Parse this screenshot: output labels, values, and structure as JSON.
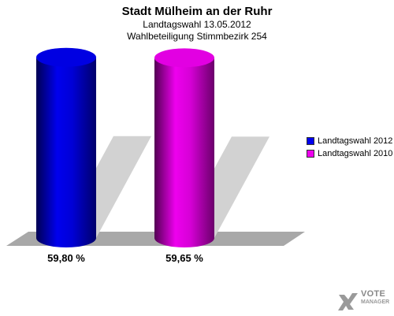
{
  "chart_data": {
    "type": "bar",
    "title": "Stadt Mülheim an der Ruhr",
    "subtitle_1": "Landtagswahl 13.05.2012",
    "subtitle_2": "Wahlbeteiligung Stimmbezirk 254",
    "categories": [
      "Landtagswahl 2012",
      "Landtagswahl 2010"
    ],
    "values": [
      59.8,
      59.65
    ],
    "value_labels": [
      "59,80 %",
      "59,65 %"
    ],
    "colors": [
      "#0000ee",
      "#ee00ee"
    ],
    "ylim": [
      0,
      60
    ],
    "legend_position": "right",
    "grid": false
  },
  "logo": {
    "line1": "VOTE",
    "line2": "MANAGER",
    "icon": "checkmark-x-icon"
  }
}
